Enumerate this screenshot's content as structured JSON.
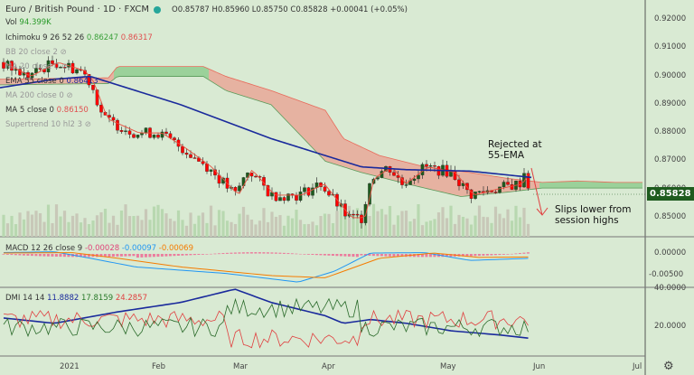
{
  "header": {
    "symbol": "Euro / British Pound · 1D · FXCM",
    "open": "O0.85787",
    "high": "H0.85960",
    "low": "L0.85750",
    "close": "C0.85828",
    "change": "+0.00041 (+0.05%)"
  },
  "legend": {
    "vol": {
      "name": "Vol",
      "value": "94.399K"
    },
    "ichimoku": {
      "name": "Ichimoku 9 26 52 26",
      "v1": "0.86247",
      "v2": "0.86317"
    },
    "bb": {
      "name": "BB 20 close 2"
    },
    "ma20": {
      "name": "MA 20 close 0"
    },
    "ema55": {
      "name": "EMA 55 close 0",
      "value": "0.86413"
    },
    "ma200": {
      "name": "MA 200 close 0"
    },
    "ma5": {
      "name": "MA 5 close 0",
      "value": "0.86150"
    },
    "supertrend": {
      "name": "Supertrend 10 hl2 3"
    },
    "macd": {
      "name": "MACD 12 26 close 9",
      "hist": "-0.00028",
      "macd": "-0.00097",
      "signal": "-0.00069"
    },
    "dmi": {
      "name": "DMI 14 14",
      "plus": "11.8882",
      "minus": "17.8159",
      "adx": "24.2857"
    }
  },
  "price_axis": [
    "0.92000",
    "0.91000",
    "0.90000",
    "0.89000",
    "0.88000",
    "0.87000",
    "0.86000",
    "0.85000"
  ],
  "last_price": "0.85828",
  "macd_axis": [
    "0.00000",
    "-0.00500"
  ],
  "dmi_axis": [
    "40.0000",
    "20.0000"
  ],
  "time_axis": [
    "2021",
    "Feb",
    "Mar",
    "Apr",
    "May",
    "Jun",
    "Jul"
  ],
  "annotations": {
    "rejected": [
      "Rejected at",
      "55-EMA"
    ],
    "slips": [
      "Slips lower from",
      "session highs"
    ]
  },
  "colors": {
    "bg": "#d9ead3",
    "up": "#1e5b1e",
    "down": "#ff0000",
    "ema": "#1a2a9c",
    "cloud_bear": "#e8a898",
    "cloud_bull": "#8fcc8f"
  },
  "chart_data": {
    "type": "candlestick",
    "closes_path": [
      [
        0,
        0.905
      ],
      [
        30,
        0.9
      ],
      [
        60,
        0.905
      ],
      [
        90,
        0.902
      ],
      [
        100,
        0.898
      ],
      [
        115,
        0.885
      ],
      [
        150,
        0.88
      ],
      [
        175,
        0.88
      ],
      [
        200,
        0.875
      ],
      [
        230,
        0.868
      ],
      [
        260,
        0.858
      ],
      [
        275,
        0.867
      ],
      [
        300,
        0.858
      ],
      [
        330,
        0.858
      ],
      [
        355,
        0.862
      ],
      [
        385,
        0.85
      ],
      [
        400,
        0.85
      ],
      [
        410,
        0.864
      ],
      [
        430,
        0.868
      ],
      [
        445,
        0.862
      ],
      [
        470,
        0.868
      ],
      [
        500,
        0.866
      ],
      [
        520,
        0.858
      ],
      [
        545,
        0.86
      ],
      [
        575,
        0.862
      ],
      [
        580,
        0.866
      ],
      [
        588,
        0.8583
      ]
    ],
    "ema55": [
      [
        0,
        0.896
      ],
      [
        60,
        0.899
      ],
      [
        100,
        0.9
      ],
      [
        200,
        0.89
      ],
      [
        300,
        0.878
      ],
      [
        400,
        0.868
      ],
      [
        450,
        0.867
      ],
      [
        520,
        0.8665
      ],
      [
        590,
        0.8642
      ]
    ],
    "cloud_a": [
      [
        0,
        0.899
      ],
      [
        120,
        0.8995
      ],
      [
        130,
        0.9035
      ],
      [
        225,
        0.9035
      ],
      [
        250,
        0.9
      ],
      [
        300,
        0.895
      ],
      [
        360,
        0.888
      ],
      [
        380,
        0.878
      ],
      [
        420,
        0.872
      ],
      [
        470,
        0.868
      ],
      [
        520,
        0.866
      ],
      [
        560,
        0.864
      ],
      [
        600,
        0.8625
      ],
      [
        640,
        0.863
      ],
      [
        680,
        0.8625
      ],
      [
        712,
        0.8625
      ]
    ],
    "cloud_b": [
      [
        0,
        0.897
      ],
      [
        120,
        0.8975
      ],
      [
        130,
        0.9
      ],
      [
        225,
        0.9
      ],
      [
        250,
        0.895
      ],
      [
        300,
        0.89
      ],
      [
        330,
        0.88
      ],
      [
        360,
        0.87
      ],
      [
        400,
        0.866
      ],
      [
        450,
        0.862
      ],
      [
        510,
        0.8575
      ],
      [
        560,
        0.859
      ],
      [
        600,
        0.8605
      ],
      [
        712,
        0.8605
      ]
    ]
  }
}
